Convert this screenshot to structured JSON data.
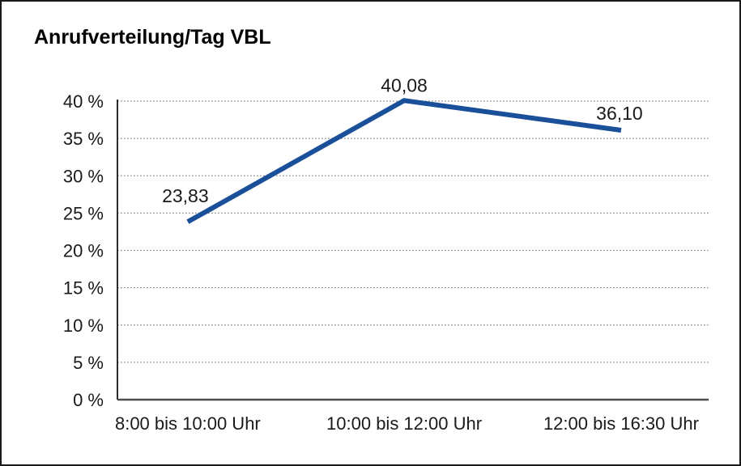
{
  "chart_data": {
    "type": "line",
    "title": "Anrufverteilung/Tag VBL",
    "categories": [
      "8:00 bis 10:00 Uhr",
      "10:00 bis 12:00 Uhr",
      "12:00 bis 16:30 Uhr"
    ],
    "values": [
      23.83,
      40.08,
      36.1
    ],
    "data_labels": [
      "23,83",
      "40,08",
      "36,10"
    ],
    "xlabel": "",
    "ylabel": "",
    "ylim": [
      0,
      40
    ],
    "y_tick_step": 5,
    "y_tick_labels": [
      "0 %",
      "5 %",
      "10 %",
      "15 %",
      "20 %",
      "25 %",
      "30 %",
      "35 %",
      "40 %"
    ],
    "grid": "horizontal-dotted",
    "legend_position": "none",
    "colors": {
      "line": "#1a4f9a",
      "grid": "#848484",
      "y_axis": "#2b2b2b",
      "x_axis": "#4d4d4d",
      "text": "#1a1a1a",
      "frame_border": "#1a1a1a",
      "background": "#ffffff"
    }
  }
}
